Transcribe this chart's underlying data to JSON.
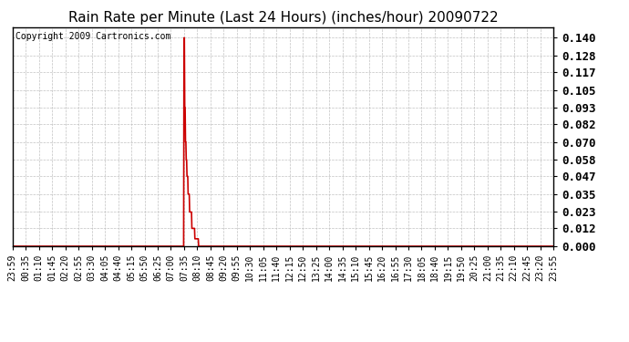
{
  "title": "Rain Rate per Minute (Last 24 Hours) (inches/hour) 20090722",
  "copyright": "Copyright 2009 Cartronics.com",
  "line_color": "#cc0000",
  "bg_color": "#ffffff",
  "grid_color": "#bbbbbb",
  "yticks": [
    0.0,
    0.012,
    0.023,
    0.035,
    0.047,
    0.058,
    0.07,
    0.082,
    0.093,
    0.105,
    0.117,
    0.128,
    0.14
  ],
  "ylim": [
    0.0,
    0.147
  ],
  "xlabel_fontsize": 7,
  "ylabel_fontsize": 9,
  "title_fontsize": 11,
  "x_labels": [
    "23:59",
    "00:35",
    "01:10",
    "01:45",
    "02:20",
    "02:55",
    "03:30",
    "04:05",
    "04:40",
    "05:15",
    "05:50",
    "06:25",
    "07:00",
    "07:35",
    "08:10",
    "08:45",
    "09:20",
    "09:55",
    "10:30",
    "11:05",
    "11:40",
    "12:15",
    "12:50",
    "13:25",
    "14:00",
    "14:35",
    "15:10",
    "15:45",
    "16:20",
    "16:55",
    "17:30",
    "18:05",
    "18:40",
    "19:15",
    "19:50",
    "20:25",
    "21:00",
    "21:35",
    "22:10",
    "22:45",
    "23:20",
    "23:55"
  ],
  "total_points": 1440,
  "peak_value": 0.14,
  "secondary_value": 0.093,
  "plateau_value": 0.07,
  "peak_idx": 456
}
